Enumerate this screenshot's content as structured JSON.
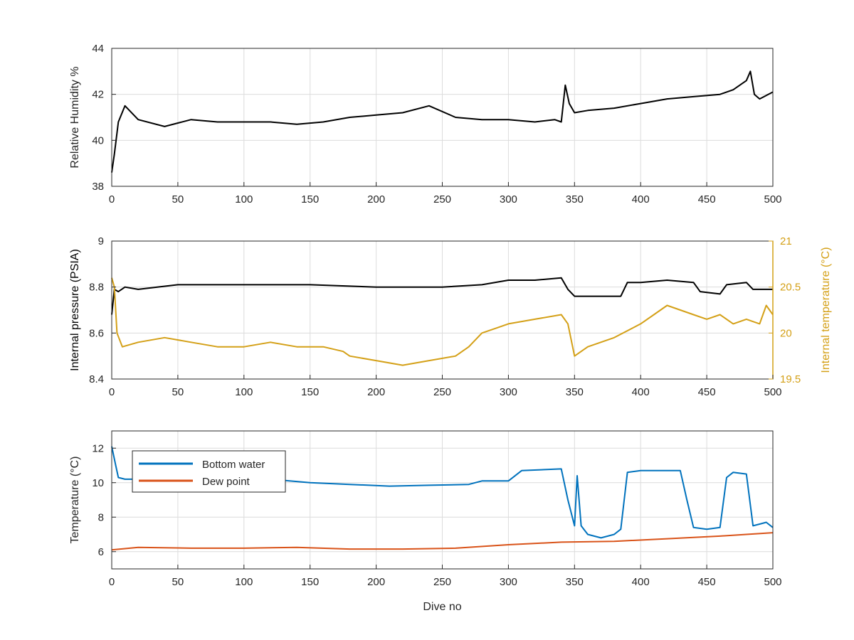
{
  "chart_data": [
    {
      "type": "line",
      "xlabel": "",
      "ylabel": "Relative Humidity %",
      "xlim": [
        0,
        500
      ],
      "ylim": [
        38,
        44
      ],
      "xticks": [
        0,
        50,
        100,
        150,
        200,
        250,
        300,
        350,
        400,
        450,
        500
      ],
      "yticks": [
        38,
        40,
        42,
        44
      ],
      "grid": true,
      "series": [
        {
          "color": "#000000",
          "x": [
            0,
            2,
            5,
            10,
            20,
            40,
            60,
            80,
            100,
            120,
            140,
            160,
            180,
            200,
            220,
            240,
            260,
            280,
            300,
            320,
            335,
            340,
            343,
            346,
            350,
            360,
            380,
            400,
            420,
            440,
            460,
            470,
            480,
            483,
            486,
            490,
            500
          ],
          "y": [
            38.6,
            39.4,
            40.8,
            41.5,
            40.9,
            40.6,
            40.9,
            40.8,
            40.8,
            40.8,
            40.7,
            40.8,
            41.0,
            41.1,
            41.2,
            41.5,
            41.0,
            40.9,
            40.9,
            40.8,
            40.9,
            40.8,
            42.4,
            41.6,
            41.2,
            41.3,
            41.4,
            41.6,
            41.8,
            41.9,
            42.0,
            42.2,
            42.6,
            43.0,
            42.0,
            41.8,
            42.1
          ]
        }
      ]
    },
    {
      "type": "line",
      "xlabel": "",
      "ylabel": "Internal pressure (PSIA)",
      "y2label": "Internal temperature (°C)",
      "xlim": [
        0,
        500
      ],
      "ylim": [
        8.4,
        9
      ],
      "y2lim": [
        19.5,
        21
      ],
      "xticks": [
        0,
        50,
        100,
        150,
        200,
        250,
        300,
        350,
        400,
        450,
        500
      ],
      "yticks": [
        8.4,
        8.6,
        8.8,
        9
      ],
      "y2ticks": [
        19.5,
        20,
        20.5,
        21
      ],
      "y2color": "#d4a017",
      "grid": true,
      "series": [
        {
          "color": "#000000",
          "axis": "left",
          "x": [
            0,
            2,
            5,
            10,
            20,
            50,
            100,
            150,
            200,
            250,
            280,
            300,
            320,
            340,
            345,
            350,
            360,
            380,
            385,
            390,
            400,
            420,
            440,
            445,
            460,
            465,
            480,
            485,
            490,
            500
          ],
          "y": [
            8.68,
            8.79,
            8.78,
            8.8,
            8.79,
            8.81,
            8.81,
            8.81,
            8.8,
            8.8,
            8.81,
            8.83,
            8.83,
            8.84,
            8.79,
            8.76,
            8.76,
            8.76,
            8.76,
            8.82,
            8.82,
            8.83,
            8.82,
            8.78,
            8.77,
            8.81,
            8.82,
            8.79,
            8.79,
            8.79
          ]
        },
        {
          "color": "#d4a017",
          "axis": "right",
          "x": [
            0,
            2,
            4,
            8,
            20,
            40,
            60,
            80,
            100,
            120,
            140,
            160,
            175,
            180,
            200,
            220,
            240,
            260,
            270,
            280,
            290,
            300,
            320,
            340,
            345,
            350,
            360,
            380,
            400,
            410,
            420,
            440,
            450,
            460,
            470,
            480,
            490,
            495,
            500
          ],
          "y": [
            20.6,
            20.5,
            20.0,
            19.85,
            19.9,
            19.95,
            19.9,
            19.85,
            19.85,
            19.9,
            19.85,
            19.85,
            19.8,
            19.75,
            19.7,
            19.65,
            19.7,
            19.75,
            19.85,
            20.0,
            20.05,
            20.1,
            20.15,
            20.2,
            20.1,
            19.75,
            19.85,
            19.95,
            20.1,
            20.2,
            20.3,
            20.2,
            20.15,
            20.2,
            20.1,
            20.15,
            20.1,
            20.3,
            20.2
          ]
        }
      ]
    },
    {
      "type": "line",
      "xlabel": "Dive no",
      "ylabel": "Temperature (°C)",
      "xlim": [
        0,
        500
      ],
      "ylim": [
        5,
        13
      ],
      "xticks": [
        0,
        50,
        100,
        150,
        200,
        250,
        300,
        350,
        400,
        450,
        500
      ],
      "yticks": [
        6,
        8,
        10,
        12
      ],
      "grid": true,
      "legend": "top-left",
      "series": [
        {
          "name": "Bottom water",
          "color": "#0072bd",
          "x": [
            0,
            3,
            5,
            10,
            30,
            60,
            90,
            120,
            150,
            180,
            210,
            240,
            270,
            280,
            300,
            310,
            340,
            345,
            350,
            352,
            355,
            360,
            370,
            380,
            385,
            390,
            400,
            430,
            435,
            440,
            450,
            460,
            465,
            470,
            480,
            485,
            490,
            495,
            500
          ],
          "y": [
            12.1,
            11.0,
            10.3,
            10.2,
            10.2,
            10.5,
            10.4,
            10.2,
            10.0,
            9.9,
            9.8,
            9.85,
            9.9,
            10.1,
            10.1,
            10.7,
            10.8,
            9.0,
            7.5,
            10.4,
            7.5,
            7.0,
            6.8,
            7.0,
            7.3,
            10.6,
            10.7,
            10.7,
            9.0,
            7.4,
            7.3,
            7.4,
            10.3,
            10.6,
            10.5,
            7.5,
            7.6,
            7.7,
            7.4
          ]
        },
        {
          "name": "Dew point",
          "color": "#d95319",
          "x": [
            0,
            20,
            60,
            100,
            140,
            180,
            220,
            260,
            300,
            340,
            380,
            420,
            460,
            480,
            500
          ],
          "y": [
            6.1,
            6.25,
            6.2,
            6.2,
            6.25,
            6.15,
            6.15,
            6.2,
            6.4,
            6.55,
            6.6,
            6.75,
            6.9,
            7.0,
            7.1
          ]
        }
      ]
    }
  ]
}
